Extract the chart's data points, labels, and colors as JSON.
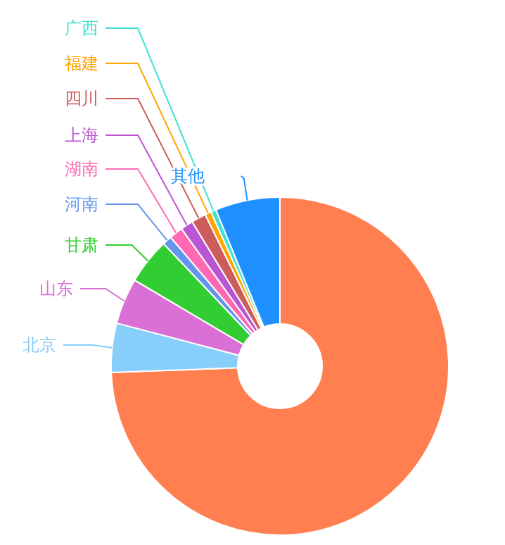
{
  "chart_data": {
    "type": "donut",
    "categories": [
      null,
      "北京",
      "山东",
      "甘肃",
      "河南",
      "湖南",
      "上海",
      "四川",
      "福建",
      "广西",
      "其他"
    ],
    "values": [
      74.4,
      4.7,
      4.4,
      4.4,
      0.9,
      1.3,
      1.2,
      1.4,
      0.6,
      0.5,
      6.2
    ],
    "colors": [
      "#ff7f50",
      "#87cefa",
      "#da70d6",
      "#32cd32",
      "#6495ed",
      "#ff69b4",
      "#ba55d3",
      "#cd5c5c",
      "#ffa500",
      "#40e0d0",
      "#1e90ff"
    ]
  }
}
